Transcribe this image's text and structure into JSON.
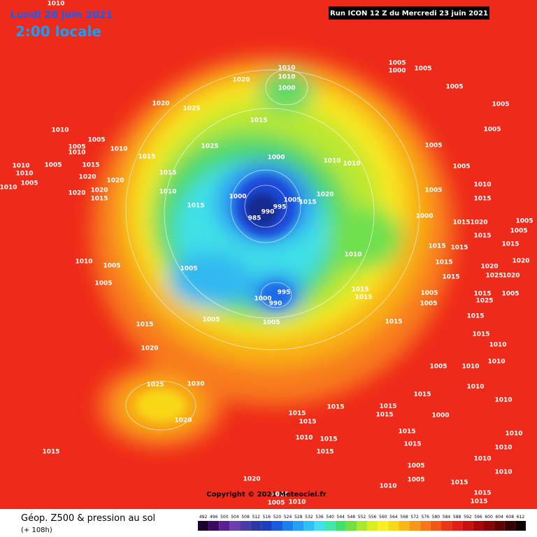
{
  "header": {
    "date": "Lundi 28 juin 2021",
    "time": "2:00 locale",
    "run": "Run ICON 12 Z du Mercredi 23 juin 2021"
  },
  "footer": {
    "title": "Géop. Z500 & pression au sol",
    "lead": "(+ 108h)"
  },
  "copyright": "Copyright © 2021 Meteociel.fr",
  "legend": {
    "values": [
      492,
      496,
      500,
      504,
      508,
      512,
      516,
      520,
      524,
      528,
      532,
      536,
      540,
      544,
      548,
      552,
      556,
      560,
      564,
      568,
      572,
      576,
      580,
      584,
      588,
      592,
      596,
      600,
      604,
      608,
      612
    ],
    "colors": [
      "#1a0030",
      "#3a0a60",
      "#5a2090",
      "#6a40b0",
      "#4a3aa8",
      "#2a3aa0",
      "#1a40c0",
      "#1a5ae0",
      "#1a80f0",
      "#20a0f8",
      "#30c0f8",
      "#40e0f0",
      "#40e8b0",
      "#40e070",
      "#70e040",
      "#a8e830",
      "#d8f020",
      "#f8f020",
      "#f8d818",
      "#f8b818",
      "#f89818",
      "#f87818",
      "#f05818",
      "#e83818",
      "#e02018",
      "#c81010",
      "#a80808",
      "#880404",
      "#600202",
      "#380000",
      "#100000"
    ]
  },
  "isobar_labels": [
    1010,
    1010,
    1010,
    1000,
    1005,
    1000,
    1005,
    1005,
    1020,
    1020,
    1025,
    1005,
    1010,
    1015,
    1005,
    1005,
    1005,
    1025,
    1005,
    1010,
    1010,
    1015,
    1000,
    1010,
    1005,
    1015,
    1010,
    1010,
    1015,
    1005,
    1010,
    1005,
    1020,
    1020,
    1010,
    1010,
    1000,
    1020,
    1005,
    1010,
    1020,
    1020,
    1015,
    1015,
    1005,
    1015,
    1015,
    990,
    995,
    985,
    1000,
    1015,
    1020,
    1005,
    1015,
    1005,
    1015,
    1015,
    1015,
    1010,
    1010,
    1005,
    1005,
    1015,
    1020,
    1020,
    1005,
    1015,
    1025,
    1020,
    995,
    1000,
    990,
    1015,
    1015,
    1005,
    1015,
    1005,
    1005,
    1025,
    1015,
    1005,
    1005,
    1015,
    1015,
    1015,
    1010,
    1020,
    1005,
    1010,
    1010,
    1025,
    1030,
    1015,
    1010,
    1010,
    1015,
    1015,
    1015,
    1015,
    1020,
    1015,
    1000,
    1010,
    1015,
    1015,
    1010,
    1015,
    1015,
    1010,
    1010,
    1015,
    1005,
    1005,
    1010,
    1020,
    1010,
    1015,
    1005,
    1010,
    1005,
    1015,
    1015
  ]
}
